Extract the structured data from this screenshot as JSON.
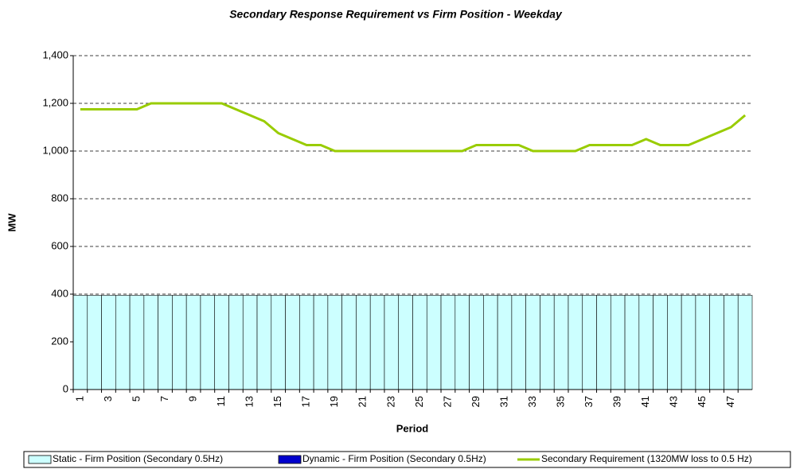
{
  "chart_data": {
    "type": "bar",
    "stacked": true,
    "title": "Secondary Response Requirement vs Firm Position - Weekday",
    "x_label": "Period",
    "y_label": "MW",
    "categories": [
      1,
      null,
      3,
      null,
      5,
      null,
      7,
      null,
      9,
      null,
      11,
      null,
      13,
      null,
      15,
      null,
      17,
      null,
      19,
      null,
      21,
      null,
      23,
      null,
      25,
      null,
      27,
      null,
      29,
      null,
      31,
      null,
      33,
      null,
      35,
      null,
      37,
      null,
      39,
      null,
      41,
      null,
      43,
      null,
      45,
      null,
      47,
      null
    ],
    "series": [
      {
        "name": "Static - Firm Position (Secondary 0.5Hz)",
        "type": "bar",
        "color": "#ccffff",
        "values": [
          395,
          395,
          395,
          395,
          395,
          395,
          395,
          395,
          395,
          395,
          395,
          395,
          395,
          395,
          395,
          395,
          395,
          395,
          395,
          395,
          395,
          395,
          395,
          395,
          395,
          395,
          395,
          395,
          395,
          395,
          395,
          395,
          395,
          395,
          395,
          395,
          395,
          395,
          395,
          395,
          395,
          395,
          395,
          395,
          395,
          395,
          395,
          395
        ]
      },
      {
        "name": "Dynamic - Firm Position (Secondary 0.5Hz)",
        "type": "bar",
        "color": "#0000cc",
        "values": [
          0,
          0,
          0,
          0,
          0,
          0,
          0,
          0,
          0,
          0,
          0,
          0,
          0,
          0,
          0,
          0,
          0,
          0,
          0,
          0,
          0,
          0,
          0,
          0,
          0,
          0,
          0,
          0,
          0,
          0,
          0,
          0,
          0,
          0,
          0,
          0,
          0,
          0,
          0,
          0,
          0,
          0,
          0,
          0,
          0,
          0,
          0,
          0
        ]
      },
      {
        "name": "Secondary Requirement (1320MW loss to 0.5 Hz)",
        "type": "line",
        "color": "#99cc00",
        "values": [
          1175,
          1175,
          1175,
          1175,
          1175,
          1200,
          1200,
          1200,
          1200,
          1200,
          1200,
          1175,
          1150,
          1125,
          1075,
          1050,
          1025,
          1025,
          1000,
          1000,
          1000,
          1000,
          1000,
          1000,
          1000,
          1000,
          1000,
          1000,
          1025,
          1025,
          1025,
          1025,
          1000,
          1000,
          1000,
          1000,
          1025,
          1025,
          1025,
          1025,
          1050,
          1025,
          1025,
          1025,
          1050,
          1075,
          1100,
          1150
        ]
      }
    ],
    "ylim": [
      0,
      1400
    ],
    "yticks": [
      0,
      200,
      400,
      600,
      800,
      {
        "value": 1000,
        "label": "1,000"
      },
      {
        "value": 1200,
        "label": "1,200"
      },
      {
        "value": 1400,
        "label": "1,400"
      }
    ],
    "grid": true,
    "legend": "bottom"
  }
}
